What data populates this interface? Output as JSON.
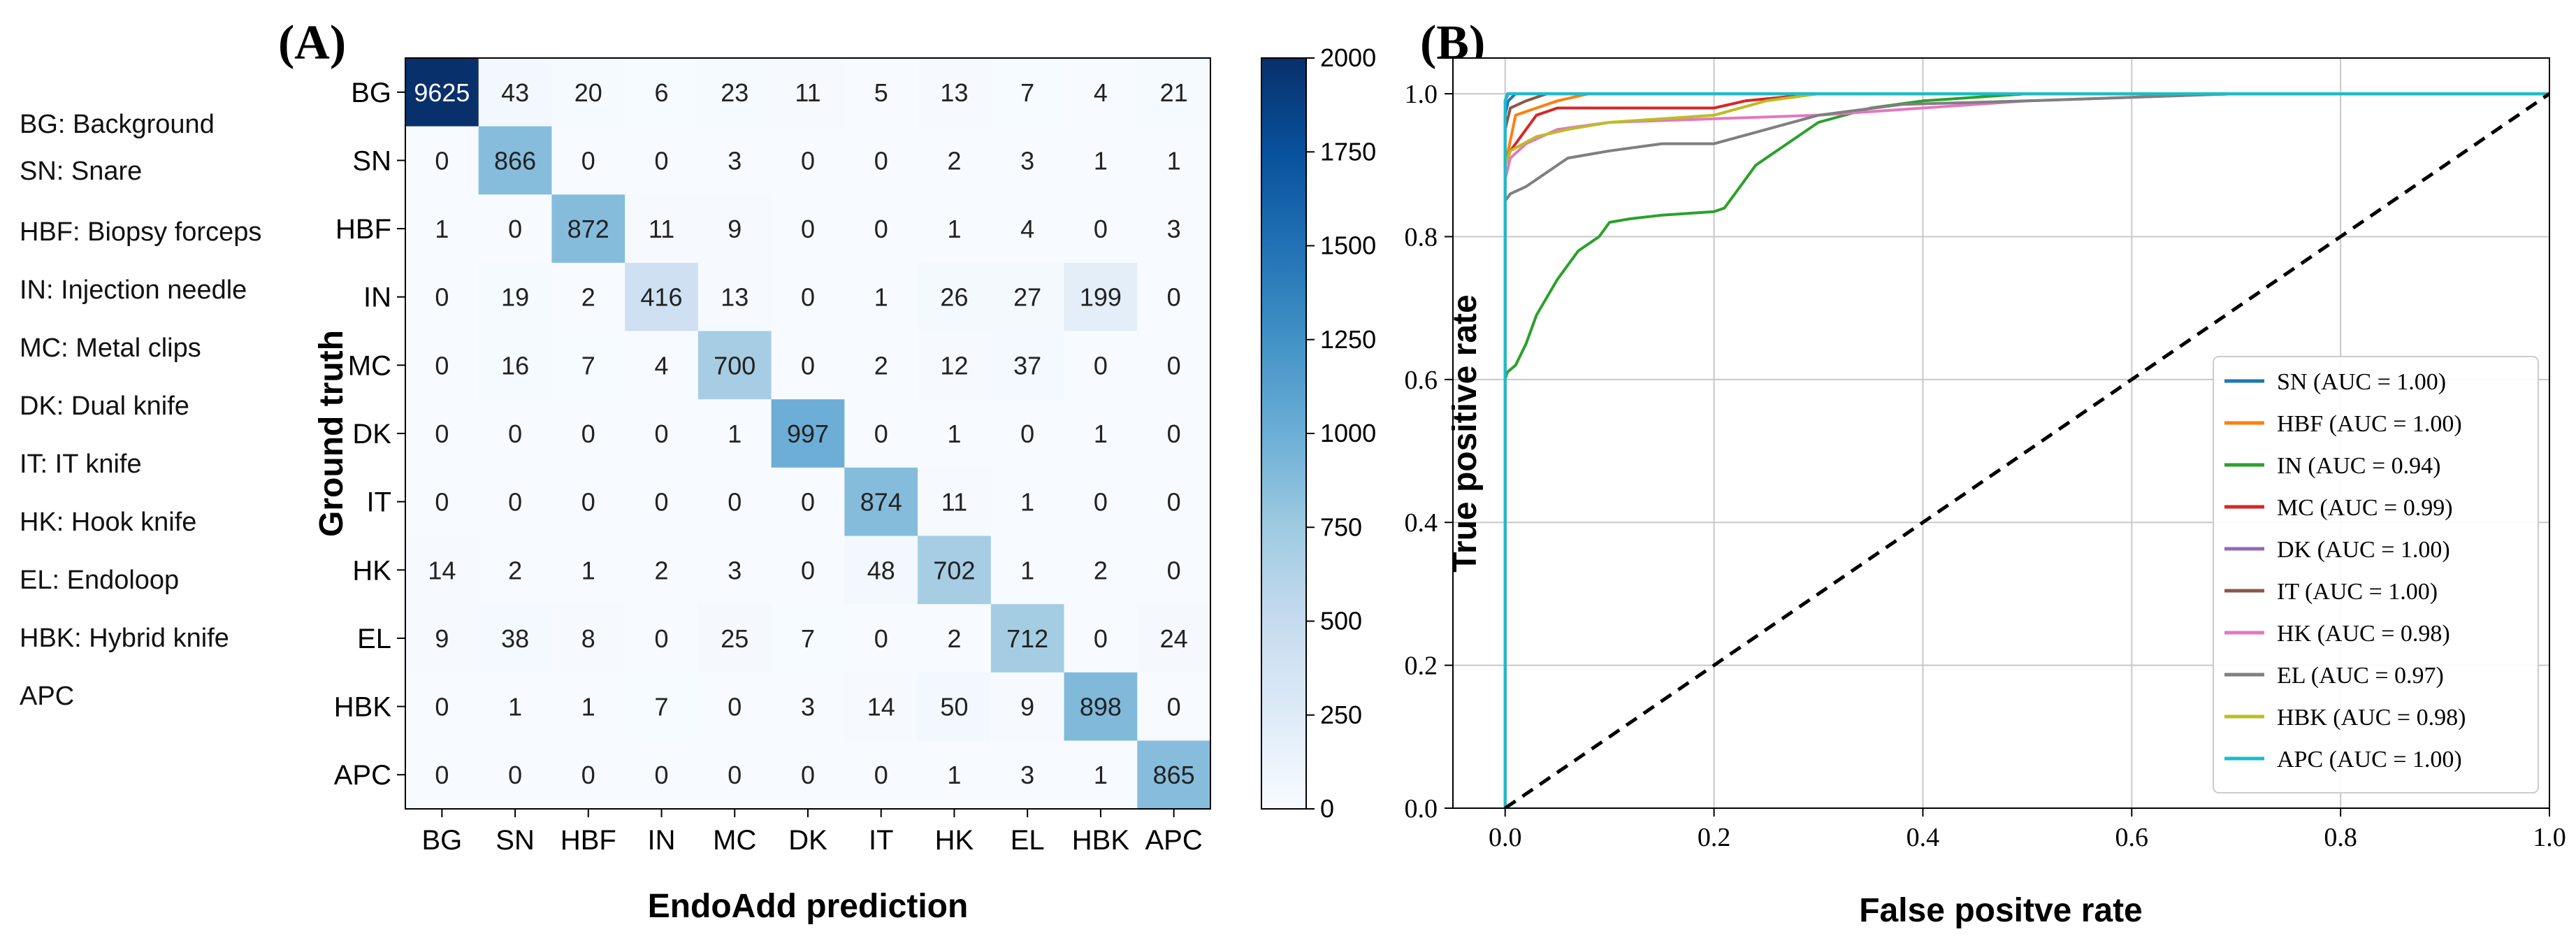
{
  "legend_abbreviations": [
    "BG: Background",
    "SN: Snare",
    "HBF: Biopsy forceps",
    "IN: Injection needle",
    "MC: Metal clips",
    "DK: Dual knife",
    "IT: IT knife",
    "HK: Hook knife",
    "EL: Endoloop",
    "HBK: Hybrid knife",
    "APC"
  ],
  "chart_data": [
    {
      "type": "heatmap",
      "panel_label": "(A)",
      "title": "",
      "xlabel": "EndoAdd prediction",
      "ylabel": "Ground truth",
      "categories": [
        "BG",
        "SN",
        "HBF",
        "IN",
        "MC",
        "DK",
        "IT",
        "HK",
        "EL",
        "HBK",
        "APC"
      ],
      "matrix": [
        [
          9625,
          43,
          20,
          6,
          23,
          11,
          5,
          13,
          7,
          4,
          21
        ],
        [
          0,
          866,
          0,
          0,
          3,
          0,
          0,
          2,
          3,
          1,
          1
        ],
        [
          1,
          0,
          872,
          11,
          9,
          0,
          0,
          1,
          4,
          0,
          3
        ],
        [
          0,
          19,
          2,
          416,
          13,
          0,
          1,
          26,
          27,
          199,
          0
        ],
        [
          0,
          16,
          7,
          4,
          700,
          0,
          2,
          12,
          37,
          0,
          0
        ],
        [
          0,
          0,
          0,
          0,
          1,
          997,
          0,
          1,
          0,
          1,
          0
        ],
        [
          0,
          0,
          0,
          0,
          0,
          0,
          874,
          11,
          1,
          0,
          0
        ],
        [
          14,
          2,
          1,
          2,
          3,
          0,
          48,
          702,
          1,
          2,
          0
        ],
        [
          9,
          38,
          8,
          0,
          25,
          7,
          0,
          2,
          712,
          0,
          24
        ],
        [
          0,
          1,
          1,
          7,
          0,
          3,
          14,
          50,
          9,
          898,
          0
        ],
        [
          0,
          0,
          0,
          0,
          0,
          0,
          0,
          1,
          3,
          1,
          865
        ]
      ],
      "colorbar": {
        "min": 0,
        "max": 2000,
        "ticks": [
          0,
          250,
          500,
          750,
          1000,
          1250,
          1500,
          1750,
          2000
        ],
        "colormap": "Blues"
      }
    },
    {
      "type": "line",
      "panel_label": "(B)",
      "title": "",
      "xlabel": "False positve rate",
      "ylabel": "True positive rate",
      "xlim": [
        -0.05,
        1.0
      ],
      "ylim": [
        0.0,
        1.05
      ],
      "xticks": [
        "0.0",
        "0.2",
        "0.4",
        "0.6",
        "0.8",
        "1.0"
      ],
      "yticks": [
        "0.0",
        "0.2",
        "0.4",
        "0.6",
        "0.8",
        "1.0"
      ],
      "grid": true,
      "legend_position": "lower-right",
      "series": [
        {
          "name": "SN (AUC = 1.00)",
          "color": "#1f77b4",
          "x": [
            0,
            0,
            0.003,
            0.01,
            0.05,
            1
          ],
          "y": [
            0,
            0.97,
            0.99,
            1.0,
            1.0,
            1.0
          ]
        },
        {
          "name": "HBF (AUC = 1.00)",
          "color": "#ff7f0e",
          "x": [
            0,
            0,
            0.01,
            0.03,
            0.05,
            0.08,
            1
          ],
          "y": [
            0,
            0.9,
            0.97,
            0.98,
            0.99,
            1.0,
            1.0
          ]
        },
        {
          "name": "IN (AUC = 0.94)",
          "color": "#2ca02c",
          "x": [
            0,
            0,
            0.002,
            0.01,
            0.02,
            0.03,
            0.05,
            0.07,
            0.09,
            0.1,
            0.12,
            0.15,
            0.2,
            0.21,
            0.22,
            0.24,
            0.27,
            0.3,
            0.35,
            0.4,
            0.5,
            0.7,
            1
          ],
          "y": [
            0,
            0.6,
            0.61,
            0.62,
            0.65,
            0.69,
            0.74,
            0.78,
            0.8,
            0.82,
            0.825,
            0.83,
            0.835,
            0.84,
            0.86,
            0.9,
            0.93,
            0.96,
            0.98,
            0.99,
            1.0,
            1.0,
            1.0
          ]
        },
        {
          "name": "MC (AUC = 0.99)",
          "color": "#d62728",
          "x": [
            0,
            0,
            0.005,
            0.02,
            0.03,
            0.05,
            0.1,
            0.2,
            0.23,
            0.3,
            1
          ],
          "y": [
            0,
            0.9,
            0.92,
            0.95,
            0.97,
            0.98,
            0.98,
            0.98,
            0.99,
            1.0,
            1.0
          ]
        },
        {
          "name": "DK (AUC = 1.00)",
          "color": "#9467bd",
          "x": [
            0,
            0,
            0.003,
            0.01,
            1
          ],
          "y": [
            0,
            0.99,
            1.0,
            1.0,
            1.0
          ]
        },
        {
          "name": "IT (AUC = 1.00)",
          "color": "#8c564b",
          "x": [
            0,
            0,
            0.005,
            0.02,
            0.04,
            1
          ],
          "y": [
            0,
            0.95,
            0.98,
            0.99,
            1.0,
            1.0
          ]
        },
        {
          "name": "HK (AUC = 0.98)",
          "color": "#e377c2",
          "x": [
            0,
            0,
            0.005,
            0.02,
            0.05,
            0.1,
            0.2,
            0.3,
            0.4,
            0.5,
            0.7,
            1
          ],
          "y": [
            0,
            0.88,
            0.91,
            0.93,
            0.95,
            0.96,
            0.965,
            0.97,
            0.98,
            0.99,
            1.0,
            1.0
          ]
        },
        {
          "name": "EL (AUC = 0.97)",
          "color": "#7f7f7f",
          "x": [
            0,
            0,
            0.005,
            0.02,
            0.04,
            0.06,
            0.1,
            0.15,
            0.2,
            0.25,
            0.3,
            0.38,
            0.5,
            0.7,
            1
          ],
          "y": [
            0,
            0.85,
            0.86,
            0.87,
            0.89,
            0.91,
            0.92,
            0.93,
            0.93,
            0.95,
            0.97,
            0.985,
            0.99,
            1.0,
            1.0
          ]
        },
        {
          "name": "HBK (AUC = 0.98)",
          "color": "#bcbd22",
          "x": [
            0,
            0,
            0.005,
            0.03,
            0.06,
            0.1,
            0.15,
            0.2,
            0.25,
            0.3,
            1
          ],
          "y": [
            0,
            0.9,
            0.92,
            0.94,
            0.95,
            0.96,
            0.965,
            0.97,
            0.99,
            1.0,
            1.0
          ]
        },
        {
          "name": "APC (AUC = 1.00)",
          "color": "#17becf",
          "x": [
            0,
            0,
            0.002,
            0.01,
            1
          ],
          "y": [
            0,
            0.99,
            1.0,
            1.0,
            1.0
          ]
        },
        {
          "name": "",
          "color": "#000000",
          "dashed": true,
          "x": [
            0,
            1
          ],
          "y": [
            0,
            1
          ]
        }
      ]
    }
  ]
}
